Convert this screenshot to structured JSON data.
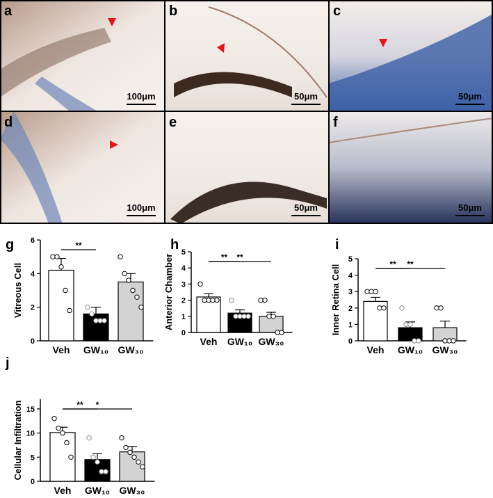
{
  "panels": [
    {
      "label": "a",
      "scale": "100μm"
    },
    {
      "label": "b",
      "scale": "50μm"
    },
    {
      "label": "c",
      "scale": "50μm"
    },
    {
      "label": "d",
      "scale": "100μm"
    },
    {
      "label": "e",
      "scale": "50μm"
    },
    {
      "label": "f",
      "scale": "50μm"
    }
  ],
  "chart_data": [
    {
      "type": "bar",
      "label": "g",
      "ylabel": "Vitreous Cell",
      "categories": [
        "Veh",
        "GW₁₀",
        "GW₃₀"
      ],
      "values": [
        4.2,
        1.6,
        3.5
      ],
      "errors": [
        0.7,
        0.4,
        0.5
      ],
      "colors": [
        "#ffffff",
        "#000000",
        "#d3d3d3"
      ],
      "points": [
        [
          5,
          5,
          4.4,
          3,
          1.8
        ],
        [
          2,
          1.6,
          1.2,
          1.2,
          1.2
        ],
        [
          5,
          4,
          3.6,
          3,
          2.6,
          2
        ]
      ],
      "ylim": [
        0,
        6
      ],
      "yticks": [
        0,
        2,
        4,
        6
      ],
      "significance": [
        {
          "from": 0,
          "to": 1,
          "label": "**"
        }
      ]
    },
    {
      "type": "bar",
      "label": "h",
      "ylabel": "Anterior Chamber",
      "categories": [
        "Veh",
        "GW₁₀",
        "GW₃₀"
      ],
      "values": [
        2.2,
        1.2,
        1.0
      ],
      "errors": [
        0.2,
        0.2,
        0.25
      ],
      "colors": [
        "#ffffff",
        "#000000",
        "#d3d3d3"
      ],
      "points": [
        [
          3,
          2,
          2,
          2,
          2
        ],
        [
          2,
          1,
          1,
          1,
          1
        ],
        [
          2,
          2,
          1,
          1,
          0,
          0
        ]
      ],
      "ylim": [
        0,
        5
      ],
      "yticks": [
        0,
        1,
        2,
        3,
        4,
        5
      ],
      "significance": [
        {
          "from": 0,
          "to": 1,
          "label": "**"
        },
        {
          "from": 0,
          "to": 2,
          "label": "**"
        }
      ]
    },
    {
      "type": "bar",
      "label": "i",
      "ylabel": "Inner Retina Cell",
      "categories": [
        "Veh",
        "GW₁₀",
        "GW₃₀"
      ],
      "values": [
        2.4,
        0.8,
        0.8
      ],
      "errors": [
        0.25,
        0.35,
        0.4
      ],
      "colors": [
        "#ffffff",
        "#000000",
        "#d3d3d3"
      ],
      "points": [
        [
          3,
          3,
          3,
          2,
          2
        ],
        [
          2,
          1,
          1,
          0,
          0
        ],
        [
          2,
          2,
          0,
          0,
          0
        ]
      ],
      "ylim": [
        0,
        5
      ],
      "yticks": [
        0,
        1,
        2,
        3,
        4,
        5
      ],
      "significance": [
        {
          "from": 0,
          "to": 1,
          "label": "**"
        },
        {
          "from": 0,
          "to": 2,
          "label": "**"
        }
      ]
    },
    {
      "type": "bar",
      "label": "j",
      "ylabel": "Cellular Infiltration",
      "categories": [
        "Veh",
        "GW₁₀",
        "GW₃₀"
      ],
      "values": [
        10.1,
        4.5,
        6.1
      ],
      "errors": [
        1.1,
        1.2,
        1.1
      ],
      "colors": [
        "#ffffff",
        "#000000",
        "#d3d3d3"
      ],
      "points": [
        [
          13,
          11,
          10,
          8,
          5
        ],
        [
          9,
          5,
          4,
          2,
          2
        ],
        [
          9,
          7,
          6,
          5,
          4,
          3
        ]
      ],
      "ylim": [
        0,
        17
      ],
      "yticks": [
        0,
        5,
        10,
        15
      ],
      "significance": [
        {
          "from": 0,
          "to": 1,
          "label": "**"
        },
        {
          "from": 0,
          "to": 2,
          "label": "*"
        }
      ]
    }
  ]
}
